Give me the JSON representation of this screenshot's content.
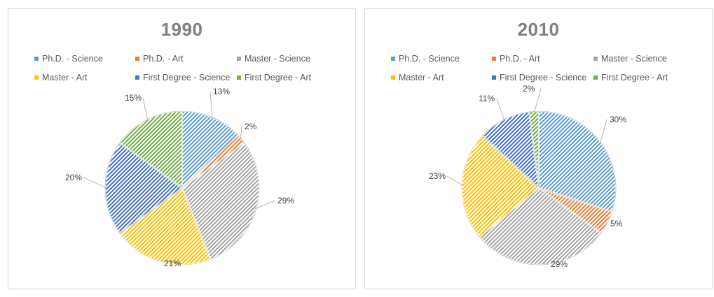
{
  "colors": {
    "Ph.D. - Science": "#5b9bd5",
    "Ph.D. - Art": "#ed7d31",
    "Master - Science": "#a5a5a5",
    "Master - Art": "#ffc000",
    "First Degree - Science": "#4472c4",
    "First Degree - Art": "#70ad47"
  },
  "chart_data": [
    {
      "type": "pie",
      "title": "1990",
      "legend_position": "top",
      "categories": [
        "Ph.D. - Science",
        "Ph.D. - Art",
        "Master - Science",
        "Master - Art",
        "First Degree - Science",
        "First Degree - Art"
      ],
      "values": [
        13,
        2,
        29,
        21,
        20,
        15
      ],
      "labels": [
        "13%",
        "2%",
        "29%",
        "21%",
        "20%",
        "15%"
      ]
    },
    {
      "type": "pie",
      "title": "2010",
      "legend_position": "top",
      "categories": [
        "Ph.D. - Science",
        "Ph.D. - Art",
        "Master - Science",
        "Master - Art",
        "First Degree - Science",
        "First Degree - Art"
      ],
      "values": [
        30,
        5,
        29,
        23,
        11,
        2
      ],
      "labels": [
        "30%",
        "5%",
        "29%",
        "23%",
        "11%",
        "2%"
      ]
    }
  ]
}
